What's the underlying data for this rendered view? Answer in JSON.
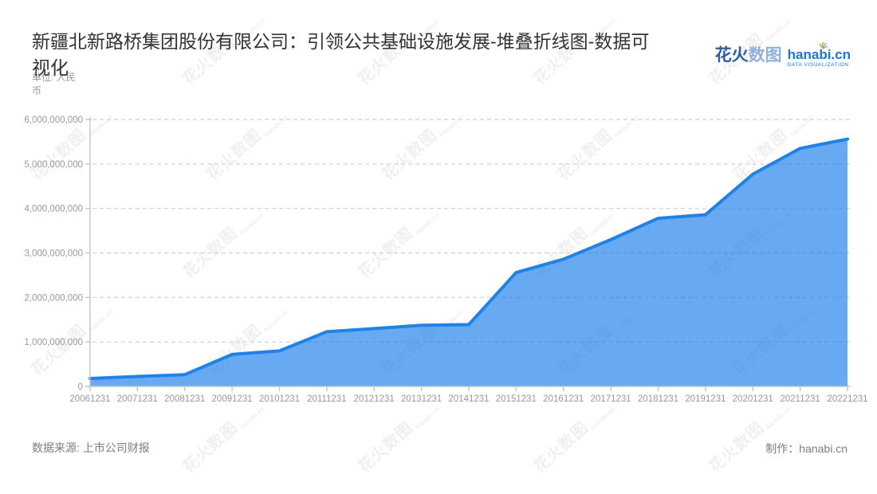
{
  "header": {
    "title": "新疆北新路桥集团股份有限公司：引领公共基础设施发展-堆叠折线图-数据可视化",
    "logo": {
      "cn_bold": "花火",
      "cn_light": "数图",
      "domain": "hanabi.cn",
      "tagline": "DATA VISUALIZATION"
    }
  },
  "watermark": {
    "main": "花火数图",
    "sub": "hanabi.cn"
  },
  "footer": {
    "source": "数据来源: 上市公司财报",
    "credit": "制作：hanabi.cn"
  },
  "colors": {
    "area_fill": "rgba(25,126,233,0.66)",
    "line_stroke": "#1E82E8",
    "grid": "#D7D7D7",
    "axis": "#C5C5C5",
    "tick_label": "#999999",
    "title_text": "#333333",
    "footer_text": "#7C7C86",
    "logo_dark_blue": "#2B5CA8",
    "logo_light_blue": "#8FB0DB",
    "logo_domain_blue": "#1C77D2"
  },
  "chart_data": {
    "type": "area",
    "title": "新疆北新路桥集团股份有限公司：引领公共基础设施发展-堆叠折线图-数据可视化",
    "unit": "单位: 人民币",
    "x": [
      "20061231",
      "20071231",
      "20081231",
      "20091231",
      "20101231",
      "20111231",
      "20121231",
      "20131231",
      "20141231",
      "20151231",
      "20161231",
      "20171231",
      "20181231",
      "20191231",
      "20201231",
      "20211231",
      "20221231"
    ],
    "values": [
      180000000,
      225000000,
      265000000,
      720000000,
      800000000,
      1230000000,
      1300000000,
      1375000000,
      1390000000,
      2560000000,
      2860000000,
      3300000000,
      3780000000,
      3860000000,
      4770000000,
      5350000000,
      5560000000
    ],
    "ylim": [
      0,
      6000000000
    ],
    "ytick_interval": 1000000000,
    "ytick_labels": [
      "0",
      "1,000,000,000",
      "2,000,000,000",
      "3,000,000,000",
      "4,000,000,000",
      "5,000,000,000",
      "6,000,000,000"
    ],
    "grid": "horizontal-dashed",
    "legend": "none"
  }
}
